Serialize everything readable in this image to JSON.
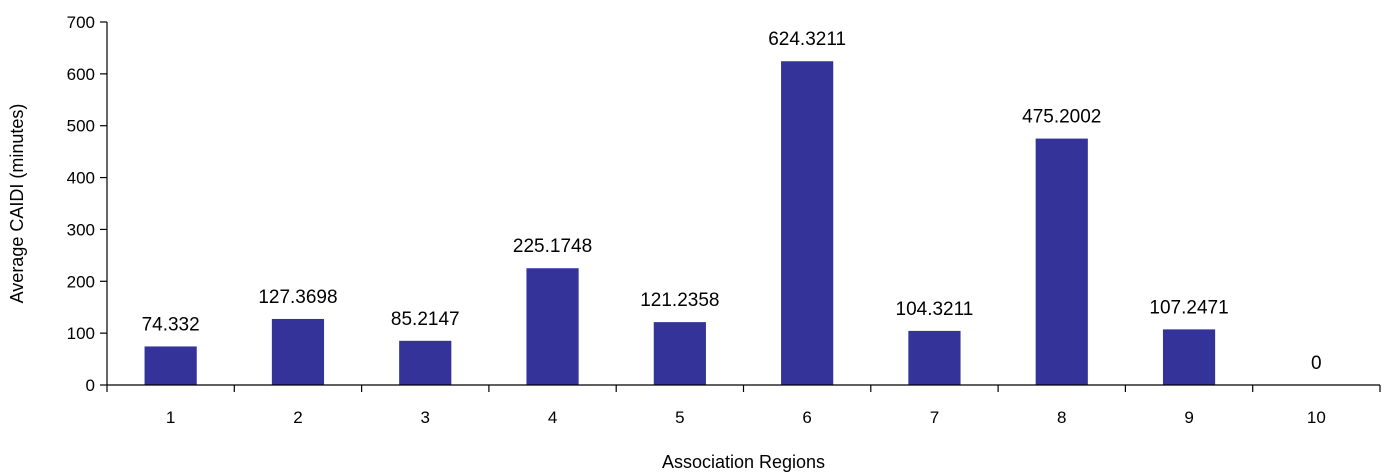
{
  "chart_data": {
    "type": "bar",
    "title": "",
    "xlabel": "Association Regions",
    "ylabel": "Average CAIDI (minutes)",
    "categories": [
      "1",
      "2",
      "3",
      "4",
      "5",
      "6",
      "7",
      "8",
      "9",
      "10"
    ],
    "values": [
      74.332,
      127.3698,
      85.2147,
      225.1748,
      121.2358,
      624.3211,
      104.3211,
      475.2002,
      107.2471,
      0
    ],
    "data_labels": [
      "74.332",
      "127.3698",
      "85.2147",
      "225.1748",
      "121.2358",
      "624.3211",
      "104.3211",
      "475.2002",
      "107.2471",
      "0"
    ],
    "ylim": [
      0,
      700
    ],
    "yticks": [
      0,
      100,
      200,
      300,
      400,
      500,
      600,
      700
    ],
    "grid": false,
    "legend": "none",
    "bar_color": "#333399"
  }
}
